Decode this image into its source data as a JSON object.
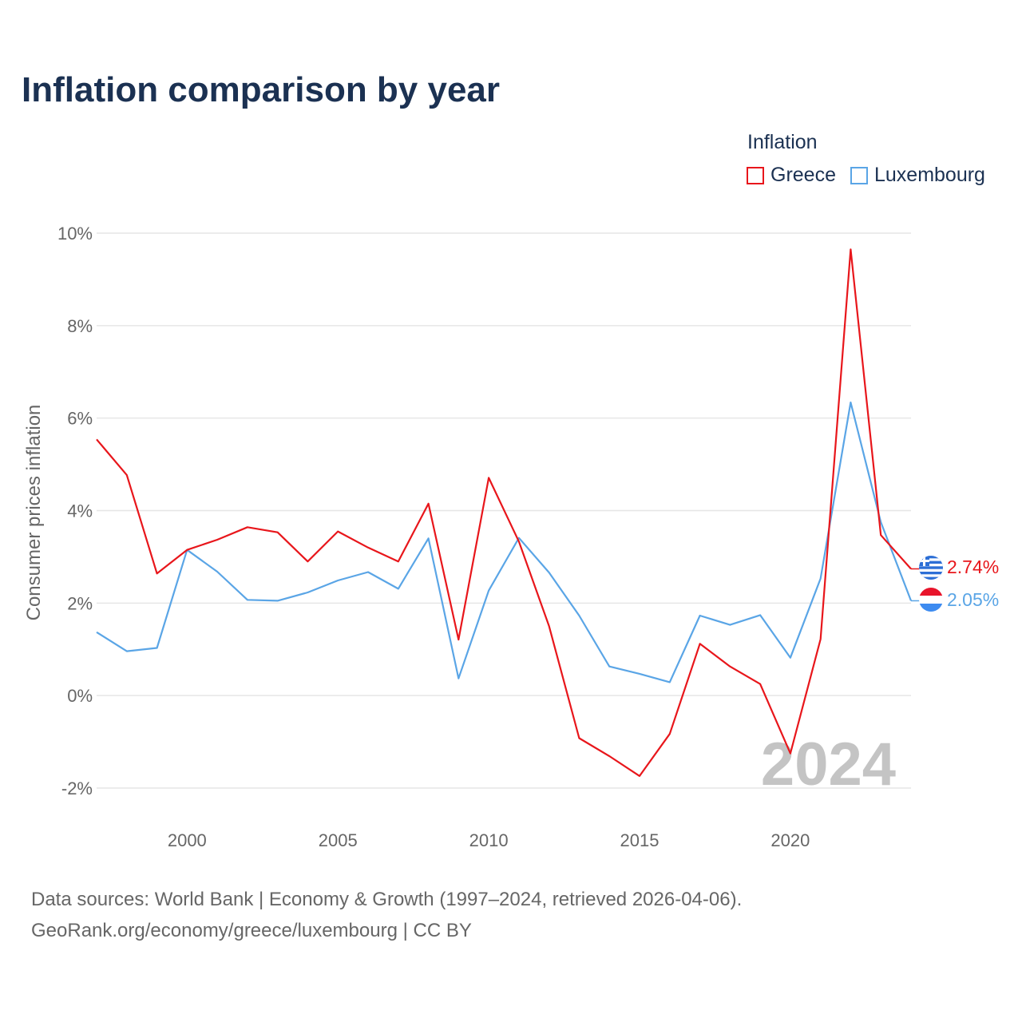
{
  "title": "Inflation comparison by year",
  "legend": {
    "title": "Inflation",
    "items": [
      {
        "label": "Greece",
        "color": "#e8161b"
      },
      {
        "label": "Luxembourg",
        "color": "#5aa5e6"
      }
    ]
  },
  "source": {
    "line1": "Data sources: World Bank | Economy & Growth (1997–2024, retrieved 2026-04-06).",
    "line2": "GeoRank.org/economy/greece/luxembourg | CC BY"
  },
  "chart_data": {
    "type": "line",
    "title": "Inflation comparison by year",
    "xlabel": "",
    "ylabel": "Consumer prices inflation",
    "xlim": [
      1997,
      2024
    ],
    "ylim": [
      -2.5,
      10.3
    ],
    "grid": true,
    "legend_position": "top-right",
    "x_ticks": [
      2000,
      2005,
      2010,
      2015,
      2020
    ],
    "y_ticks": [
      {
        "value": 10,
        "label": "10%"
      },
      {
        "value": 8,
        "label": "8%"
      },
      {
        "value": 6,
        "label": "6%"
      },
      {
        "value": 4,
        "label": "4%"
      },
      {
        "value": 2,
        "label": "2%"
      },
      {
        "value": 0,
        "label": "0%"
      },
      {
        "value": -2,
        "label": "-2%"
      }
    ],
    "x": [
      1997,
      1998,
      1999,
      2000,
      2001,
      2002,
      2003,
      2004,
      2005,
      2006,
      2007,
      2008,
      2009,
      2010,
      2011,
      2012,
      2013,
      2014,
      2015,
      2016,
      2017,
      2018,
      2019,
      2020,
      2021,
      2022,
      2023,
      2024
    ],
    "series": [
      {
        "name": "Greece",
        "color": "#e8161b",
        "end_label": "2.74%",
        "values": [
          5.54,
          4.77,
          2.64,
          3.15,
          3.37,
          3.64,
          3.53,
          2.9,
          3.55,
          3.2,
          2.9,
          4.15,
          1.21,
          4.71,
          3.33,
          1.5,
          -0.92,
          -1.31,
          -1.74,
          -0.83,
          1.12,
          0.63,
          0.25,
          -1.25,
          1.22,
          9.65,
          3.47,
          2.74
        ]
      },
      {
        "name": "Luxembourg",
        "color": "#5aa5e6",
        "end_label": "2.05%",
        "values": [
          1.37,
          0.96,
          1.03,
          3.15,
          2.68,
          2.07,
          2.05,
          2.23,
          2.49,
          2.67,
          2.31,
          3.4,
          0.37,
          2.27,
          3.41,
          2.66,
          1.73,
          0.63,
          0.47,
          0.29,
          1.73,
          1.53,
          1.74,
          0.82,
          2.53,
          6.34,
          3.75,
          2.05
        ]
      }
    ],
    "current_year_label": "2024"
  }
}
